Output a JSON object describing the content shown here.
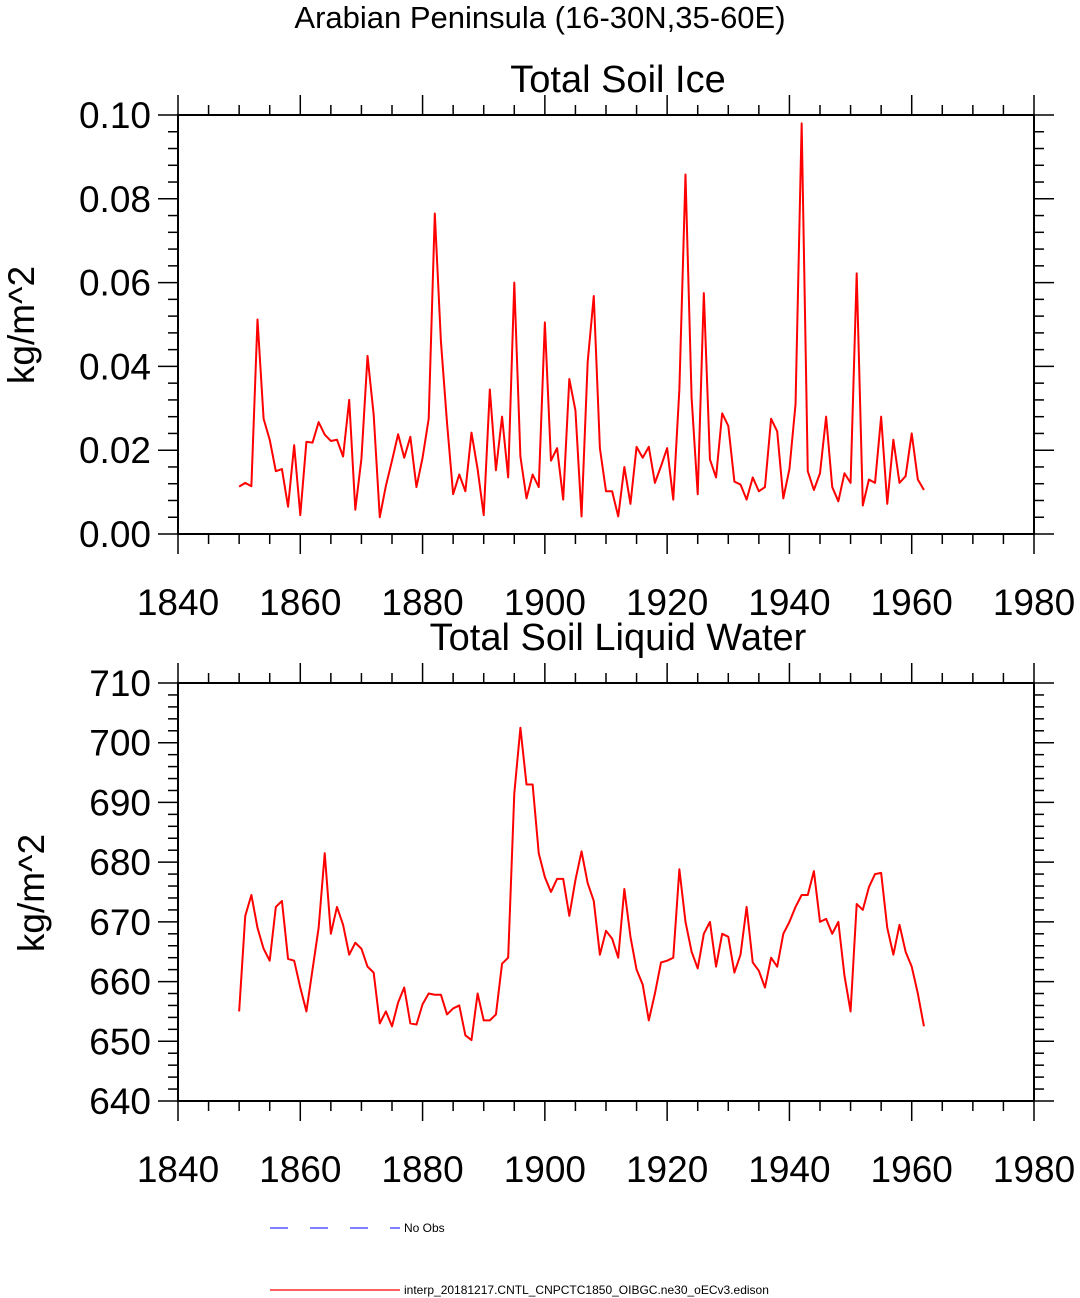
{
  "suptitle": "Arabian Peninsula (16-30N,35-60E)",
  "legend": [
    {
      "label": "No Obs",
      "color": "#3333ff",
      "style": "dashed"
    },
    {
      "label": "interp_20181217.CNTL_CNPCTC1850_OIBGC.ne30_oECv3.edison",
      "color": "#ff0000",
      "style": "solid"
    }
  ],
  "chart_data": [
    {
      "type": "line",
      "title": "Total Soil Ice",
      "ylabel": "kg/m^2",
      "xlim": [
        1840,
        1980
      ],
      "ylim": [
        0,
        0.1
      ],
      "x_ticks": [
        1840,
        1860,
        1880,
        1900,
        1920,
        1940,
        1960,
        1980
      ],
      "y_ticks": [
        "0.00",
        "0.02",
        "0.04",
        "0.06",
        "0.08",
        "0.10"
      ],
      "x_start": 1850,
      "series": [
        {
          "color": "#ff0000",
          "values": [
            0.0113,
            0.0122,
            0.0114,
            0.0512,
            0.0275,
            0.0225,
            0.015,
            0.0155,
            0.0065,
            0.0212,
            0.0045,
            0.022,
            0.0218,
            0.0267,
            0.0237,
            0.0222,
            0.0225,
            0.0185,
            0.032,
            0.0058,
            0.018,
            0.0425,
            0.0285,
            0.004,
            0.0115,
            0.0175,
            0.0238,
            0.0182,
            0.0232,
            0.0112,
            0.0182,
            0.0275,
            0.0765,
            0.046,
            0.0265,
            0.0095,
            0.0142,
            0.0102,
            0.0242,
            0.0155,
            0.0045,
            0.0345,
            0.0152,
            0.028,
            0.0135,
            0.06,
            0.0185,
            0.0085,
            0.0142,
            0.0112,
            0.0505,
            0.0175,
            0.0205,
            0.0082,
            0.037,
            0.0295,
            0.0042,
            0.041,
            0.0568,
            0.0205,
            0.0102,
            0.0102,
            0.0042,
            0.016,
            0.0072,
            0.0208,
            0.0182,
            0.0208,
            0.0122,
            0.0162,
            0.0205,
            0.0082,
            0.0345,
            0.0858,
            0.0325,
            0.0095,
            0.0575,
            0.0178,
            0.0135,
            0.0288,
            0.0258,
            0.0125,
            0.0118,
            0.0082,
            0.0135,
            0.0102,
            0.0112,
            0.0275,
            0.0245,
            0.0085,
            0.0155,
            0.031,
            0.098,
            0.015,
            0.0105,
            0.0145,
            0.028,
            0.0112,
            0.0078,
            0.0145,
            0.0122,
            0.0622,
            0.0068,
            0.013,
            0.0122,
            0.028,
            0.0072,
            0.0225,
            0.0122,
            0.0138,
            0.024,
            0.013,
            0.0105
          ]
        }
      ]
    },
    {
      "type": "line",
      "title": "Total Soil Liquid Water",
      "ylabel": "kg/m^2",
      "xlim": [
        1840,
        1980
      ],
      "ylim": [
        640,
        710
      ],
      "x_ticks": [
        1840,
        1860,
        1880,
        1900,
        1920,
        1940,
        1960,
        1980
      ],
      "y_ticks": [
        "640",
        "650",
        "660",
        "670",
        "680",
        "690",
        "700",
        "710"
      ],
      "x_start": 1850,
      "series": [
        {
          "color": "#ff0000",
          "values": [
            655,
            671,
            674.5,
            669,
            665.5,
            663.5,
            672.5,
            673.5,
            663.8,
            663.5,
            659,
            655,
            662,
            669,
            681.5,
            668,
            672.5,
            669.5,
            664.5,
            666.5,
            665.5,
            662.5,
            661.5,
            653,
            655,
            652.5,
            656.5,
            659,
            653,
            652.8,
            656.2,
            658,
            657.8,
            657.8,
            654.5,
            655.5,
            656,
            651,
            650.2,
            658,
            653.5,
            653.5,
            654.5,
            663,
            664,
            691.5,
            702.5,
            693,
            693,
            681.5,
            677.5,
            675,
            677.2,
            677.2,
            671,
            677,
            681.8,
            676.5,
            673.5,
            664.5,
            668.5,
            667.2,
            664,
            675.5,
            667.5,
            662,
            659.5,
            653.5,
            658,
            663.2,
            663.5,
            664,
            678.8,
            670,
            665,
            662.2,
            668,
            670,
            662.5,
            668,
            667.5,
            661.5,
            664.5,
            672.5,
            663.2,
            661.8,
            659,
            664,
            662.5,
            668,
            670,
            672.5,
            674.5,
            674.5,
            678.5,
            670,
            670.5,
            668,
            670,
            661,
            655,
            673,
            672,
            675.8,
            678,
            678.2,
            669,
            664.5,
            669.5,
            665,
            662.5,
            658,
            652.5
          ]
        }
      ]
    }
  ]
}
